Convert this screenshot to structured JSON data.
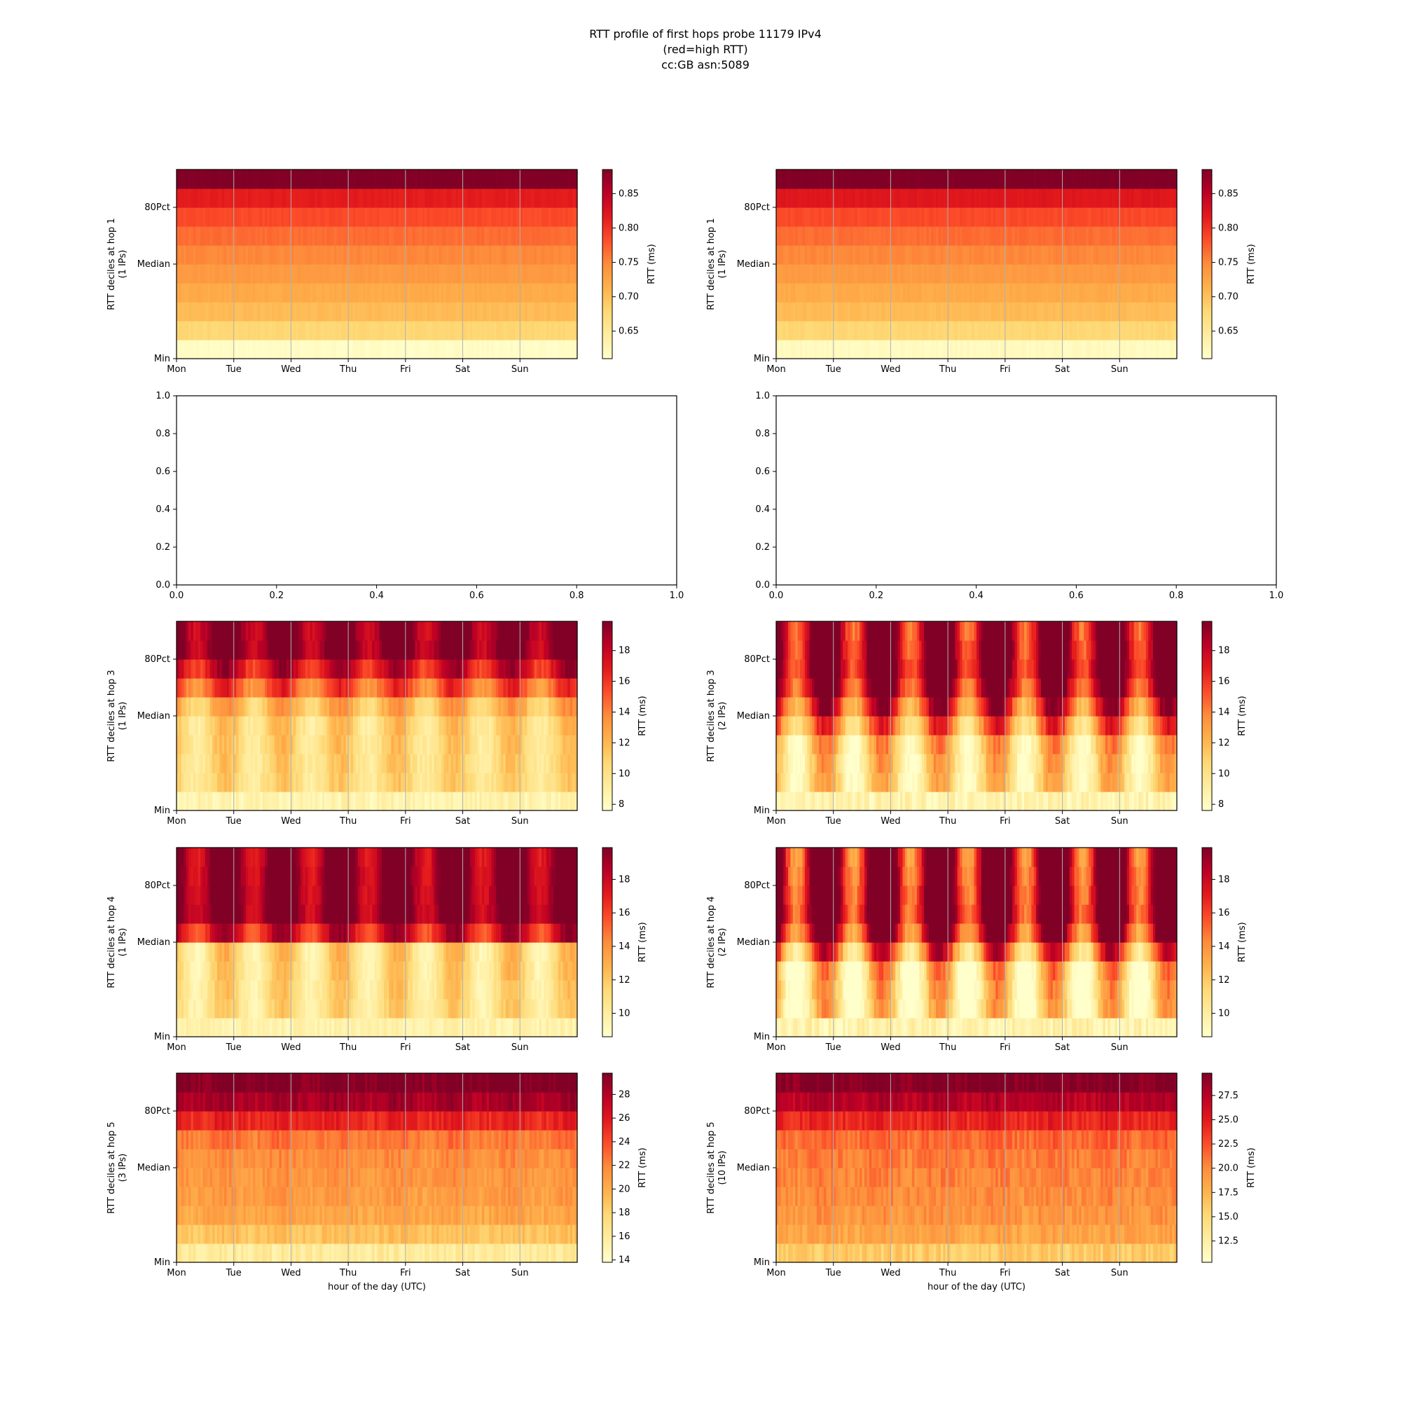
{
  "figure": {
    "title_lines": [
      "RTT profile of first hops probe 11179 IPv4",
      "(red=high RTT)",
      "cc:GB asn:5089"
    ]
  },
  "chart_data": [
    {
      "type": "heatmap",
      "ylabel": "RTT deciles at hop 1",
      "ylabel2": "(1 IPs)",
      "xlabel": "",
      "x_ticks": [
        "Mon",
        "Tue",
        "Wed",
        "Thu",
        "Fri",
        "Sat",
        "Sun"
      ],
      "y_ticks": [
        "Min",
        "Median",
        "80Pct"
      ],
      "grid_x": true,
      "colorbar": {
        "label": "RTT (ms)",
        "range": [
          0.61,
          0.885
        ],
        "ticks": [
          "0.65",
          "0.70",
          "0.75",
          "0.80",
          "0.85"
        ],
        "tick_values": [
          0.65,
          0.7,
          0.75,
          0.8,
          0.85
        ]
      },
      "colormap": "YlOrRd",
      "decile_levels": [
        0.615,
        0.68,
        0.705,
        0.72,
        0.735,
        0.75,
        0.765,
        0.785,
        0.815,
        0.885
      ],
      "diurnal_shift": 0,
      "noise": 0.008
    },
    {
      "type": "heatmap",
      "ylabel": "RTT deciles at hop 1",
      "ylabel2": "(1 IPs)",
      "xlabel": "",
      "x_ticks": [
        "Mon",
        "Tue",
        "Wed",
        "Thu",
        "Fri",
        "Sat",
        "Sun"
      ],
      "y_ticks": [
        "Min",
        "Median",
        "80Pct"
      ],
      "grid_x": true,
      "colorbar": {
        "label": "RTT (ms)",
        "range": [
          0.61,
          0.885
        ],
        "ticks": [
          "0.65",
          "0.70",
          "0.75",
          "0.80",
          "0.85"
        ],
        "tick_values": [
          0.65,
          0.7,
          0.75,
          0.8,
          0.85
        ]
      },
      "colormap": "YlOrRd",
      "decile_levels": [
        0.62,
        0.68,
        0.705,
        0.72,
        0.735,
        0.75,
        0.765,
        0.785,
        0.82,
        0.885
      ],
      "diurnal_shift": 0,
      "noise": 0.008
    },
    {
      "type": "empty",
      "xlim": [
        0.0,
        1.0
      ],
      "ylim": [
        0.0,
        1.0
      ],
      "x_ticks": [
        "0.0",
        "0.2",
        "0.4",
        "0.6",
        "0.8",
        "1.0"
      ],
      "y_ticks": [
        "0.0",
        "0.2",
        "0.4",
        "0.6",
        "0.8",
        "1.0"
      ]
    },
    {
      "type": "empty",
      "xlim": [
        0.0,
        1.0
      ],
      "ylim": [
        0.0,
        1.0
      ],
      "x_ticks": [
        "0.0",
        "0.2",
        "0.4",
        "0.6",
        "0.8",
        "1.0"
      ],
      "y_ticks": [
        "0.0",
        "0.2",
        "0.4",
        "0.6",
        "0.8",
        "1.0"
      ]
    },
    {
      "type": "heatmap",
      "ylabel": "RTT deciles at hop 3",
      "ylabel2": "(1 IPs)",
      "xlabel": "",
      "x_ticks": [
        "Mon",
        "Tue",
        "Wed",
        "Thu",
        "Fri",
        "Sat",
        "Sun"
      ],
      "y_ticks": [
        "Min",
        "Median",
        "80Pct"
      ],
      "grid_x": true,
      "colorbar": {
        "label": "RTT (ms)",
        "range": [
          7.6,
          19.9
        ],
        "ticks": [
          "8",
          "10",
          "12",
          "14",
          "16",
          "18"
        ],
        "tick_values": [
          8,
          10,
          12,
          14,
          16,
          18
        ]
      },
      "colormap": "YlOrRd",
      "decile_levels": [
        8.6,
        10.4,
        10.5,
        10.6,
        10.7,
        12.0,
        15.0,
        17.5,
        19.9,
        19.9
      ],
      "diurnal_shift": 2.5,
      "noise": 1.2
    },
    {
      "type": "heatmap",
      "ylabel": "RTT deciles at hop 3",
      "ylabel2": "(2 IPs)",
      "xlabel": "",
      "x_ticks": [
        "Mon",
        "Tue",
        "Wed",
        "Thu",
        "Fri",
        "Sat",
        "Sun"
      ],
      "y_ticks": [
        "Min",
        "Median",
        "80Pct"
      ],
      "grid_x": true,
      "colorbar": {
        "label": "RTT (ms)",
        "range": [
          7.6,
          19.9
        ],
        "ticks": [
          "8",
          "10",
          "12",
          "14",
          "16",
          "18"
        ],
        "tick_values": [
          8,
          10,
          12,
          14,
          16,
          18
        ]
      },
      "colormap": "YlOrRd",
      "decile_levels": [
        8.6,
        10.4,
        10.6,
        11.0,
        13.5,
        16.0,
        18.5,
        19.9,
        19.9,
        19.9
      ],
      "diurnal_shift": 6.0,
      "noise": 1.5
    },
    {
      "type": "heatmap",
      "ylabel": "RTT deciles at hop 4",
      "ylabel2": "(1 IPs)",
      "xlabel": "",
      "x_ticks": [
        "Mon",
        "Tue",
        "Wed",
        "Thu",
        "Fri",
        "Sat",
        "Sun"
      ],
      "y_ticks": [
        "Min",
        "Median",
        "80Pct"
      ],
      "grid_x": true,
      "colorbar": {
        "label": "RTT (ms)",
        "range": [
          8.6,
          19.9
        ],
        "ticks": [
          "10",
          "12",
          "14",
          "16",
          "18"
        ],
        "tick_values": [
          10,
          12,
          14,
          16,
          18
        ]
      },
      "colormap": "YlOrRd",
      "decile_levels": [
        9.6,
        10.9,
        11.0,
        11.1,
        11.2,
        17.5,
        19.9,
        19.9,
        19.9,
        19.9
      ],
      "diurnal_shift": 3.0,
      "noise": 1.0
    },
    {
      "type": "heatmap",
      "ylabel": "RTT deciles at hop 4",
      "ylabel2": "(2 IPs)",
      "xlabel": "",
      "x_ticks": [
        "Mon",
        "Tue",
        "Wed",
        "Thu",
        "Fri",
        "Sat",
        "Sun"
      ],
      "y_ticks": [
        "Min",
        "Median",
        "80Pct"
      ],
      "grid_x": true,
      "colorbar": {
        "label": "RTT (ms)",
        "range": [
          8.6,
          19.9
        ],
        "ticks": [
          "10",
          "12",
          "14",
          "16",
          "18"
        ],
        "tick_values": [
          10,
          12,
          14,
          16,
          18
        ]
      },
      "colormap": "YlOrRd",
      "decile_levels": [
        9.6,
        10.9,
        11.0,
        11.4,
        14.5,
        18.0,
        19.9,
        19.9,
        19.9,
        19.9
      ],
      "diurnal_shift": 7.0,
      "noise": 1.5
    },
    {
      "type": "heatmap",
      "ylabel": "RTT deciles at hop 5",
      "ylabel2": "(3 IPs)",
      "xlabel": "hour of the day (UTC)",
      "x_ticks": [
        "Mon",
        "Tue",
        "Wed",
        "Thu",
        "Fri",
        "Sat",
        "Sun"
      ],
      "y_ticks": [
        "Min",
        "Median",
        "80Pct"
      ],
      "grid_x": true,
      "colorbar": {
        "label": "RTT (ms)",
        "range": [
          13.8,
          29.8
        ],
        "ticks": [
          "14",
          "16",
          "18",
          "20",
          "22",
          "24",
          "26",
          "28"
        ],
        "tick_values": [
          14,
          16,
          18,
          20,
          22,
          24,
          26,
          28
        ]
      },
      "colormap": "YlOrRd",
      "decile_levels": [
        16.0,
        19.0,
        20.5,
        21.0,
        21.3,
        21.6,
        22.5,
        25.5,
        28.5,
        29.8
      ],
      "diurnal_shift": 0.5,
      "noise": 1.6
    },
    {
      "type": "heatmap",
      "ylabel": "RTT deciles at hop 5",
      "ylabel2": "(10 IPs)",
      "xlabel": "hour of the day (UTC)",
      "x_ticks": [
        "Mon",
        "Tue",
        "Wed",
        "Thu",
        "Fri",
        "Sat",
        "Sun"
      ],
      "y_ticks": [
        "Min",
        "Median",
        "80Pct"
      ],
      "grid_x": true,
      "colorbar": {
        "label": "RTT (ms)",
        "range": [
          10.3,
          29.8
        ],
        "ticks": [
          "12.5",
          "15.0",
          "17.5",
          "20.0",
          "22.5",
          "25.0",
          "27.5"
        ],
        "tick_values": [
          12.5,
          15.0,
          17.5,
          20.0,
          22.5,
          25.0,
          27.5
        ]
      },
      "colormap": "YlOrRd",
      "decile_levels": [
        16.0,
        18.5,
        19.5,
        20.0,
        20.3,
        20.7,
        21.5,
        24.5,
        27.5,
        29.8
      ],
      "diurnal_shift": 0.5,
      "noise": 2.2
    }
  ]
}
